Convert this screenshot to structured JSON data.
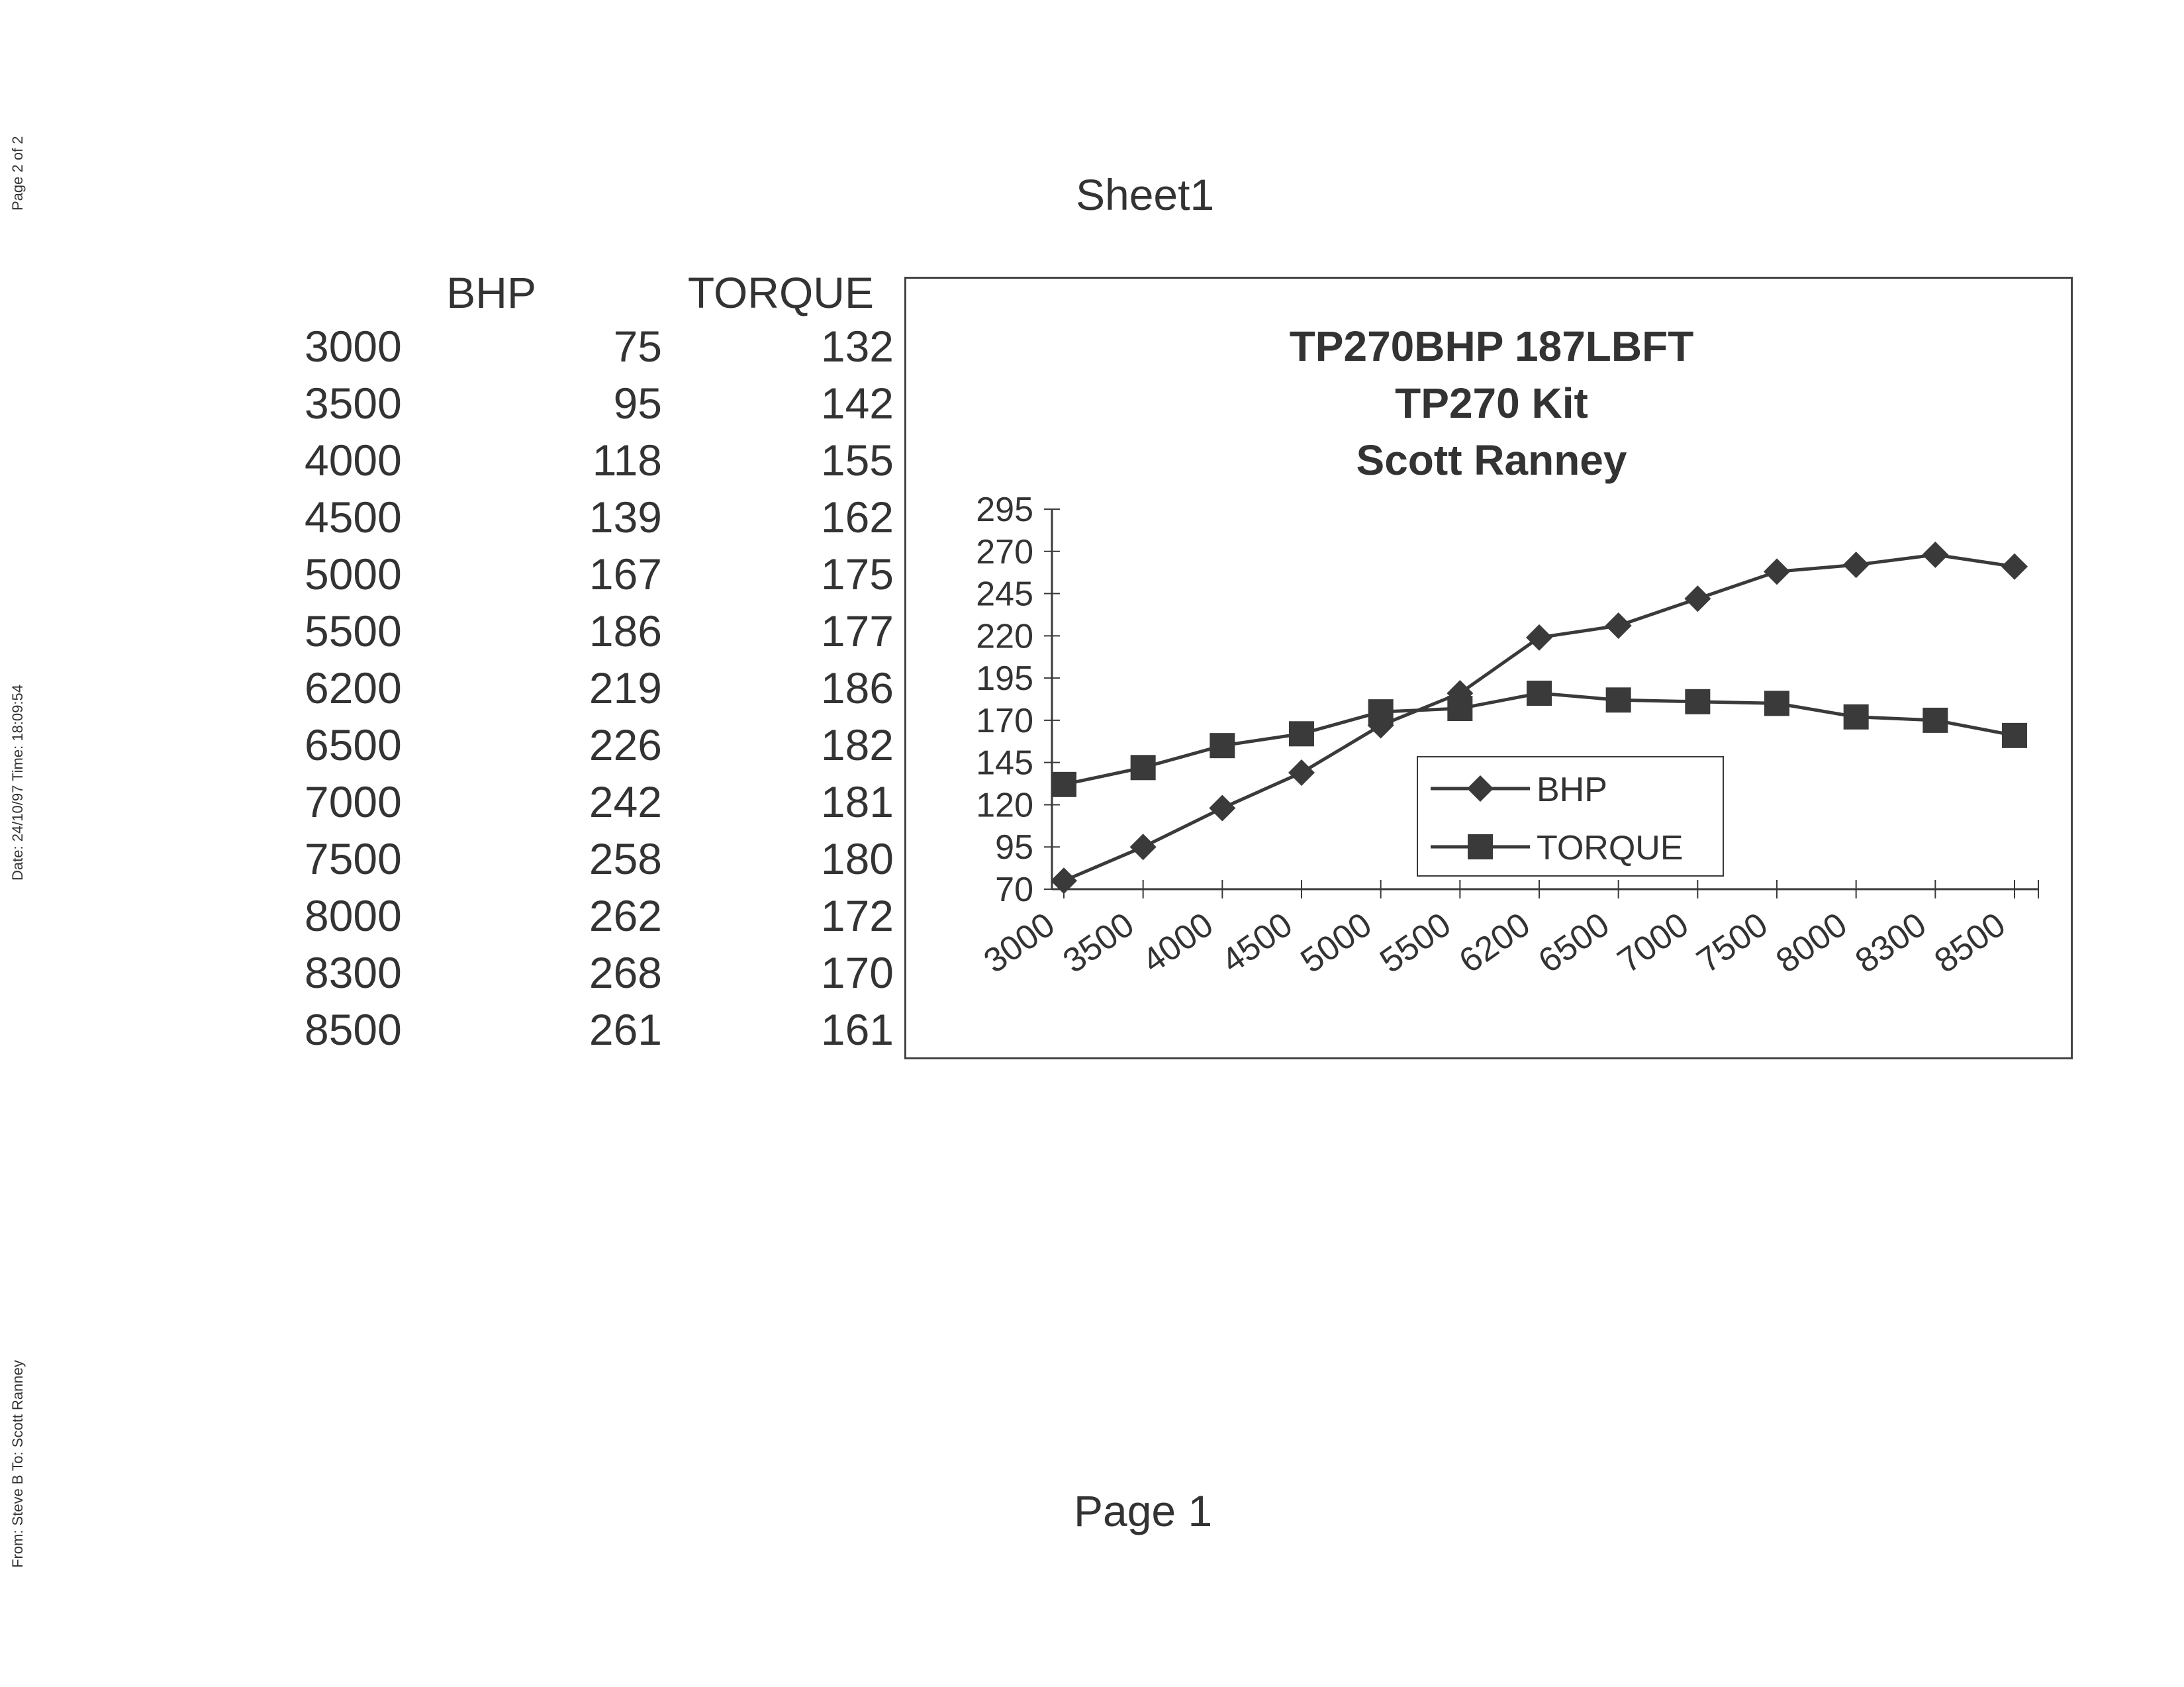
{
  "fax_header": {
    "page": "Page 2 of 2",
    "date_time": "Date: 24/10/97  Time: 18:09:54",
    "from_to": "From: Steve B  To: Scott Ranney"
  },
  "sheet_title": "Sheet1",
  "footer": "Page 1",
  "table": {
    "headers": [
      "",
      "BHP",
      "TORQUE"
    ],
    "rows": [
      [
        "3000",
        "75",
        "132"
      ],
      [
        "3500",
        "95",
        "142"
      ],
      [
        "4000",
        "118",
        "155"
      ],
      [
        "4500",
        "139",
        "162"
      ],
      [
        "5000",
        "167",
        "175"
      ],
      [
        "5500",
        "186",
        "177"
      ],
      [
        "6200",
        "219",
        "186"
      ],
      [
        "6500",
        "226",
        "182"
      ],
      [
        "7000",
        "242",
        "181"
      ],
      [
        "7500",
        "258",
        "180"
      ],
      [
        "8000",
        "262",
        "172"
      ],
      [
        "8300",
        "268",
        "170"
      ],
      [
        "8500",
        "261",
        "161"
      ]
    ]
  },
  "chart_data": {
    "type": "line",
    "title": [
      "TP270BHP 187LBFT",
      "TP270 Kit",
      "Scott Ranney"
    ],
    "categories": [
      "3000",
      "3500",
      "4000",
      "4500",
      "5000",
      "5500",
      "6200",
      "6500",
      "7000",
      "7500",
      "8000",
      "8300",
      "8500"
    ],
    "series": [
      {
        "name": "BHP",
        "marker": "diamond",
        "values": [
          75,
          95,
          118,
          139,
          167,
          186,
          219,
          226,
          242,
          258,
          262,
          268,
          261
        ]
      },
      {
        "name": "TORQUE",
        "marker": "square",
        "values": [
          132,
          142,
          155,
          162,
          175,
          177,
          186,
          182,
          181,
          180,
          172,
          170,
          161
        ]
      }
    ],
    "yticks": [
      70,
      95,
      120,
      145,
      170,
      195,
      220,
      245,
      270,
      295
    ],
    "ylim": [
      70,
      295
    ],
    "xlabel": "",
    "ylabel": "",
    "grid": false,
    "legend_position": "center-right",
    "colors": {
      "line": "#3a3a3a",
      "marker": "#3a3a3a"
    }
  }
}
